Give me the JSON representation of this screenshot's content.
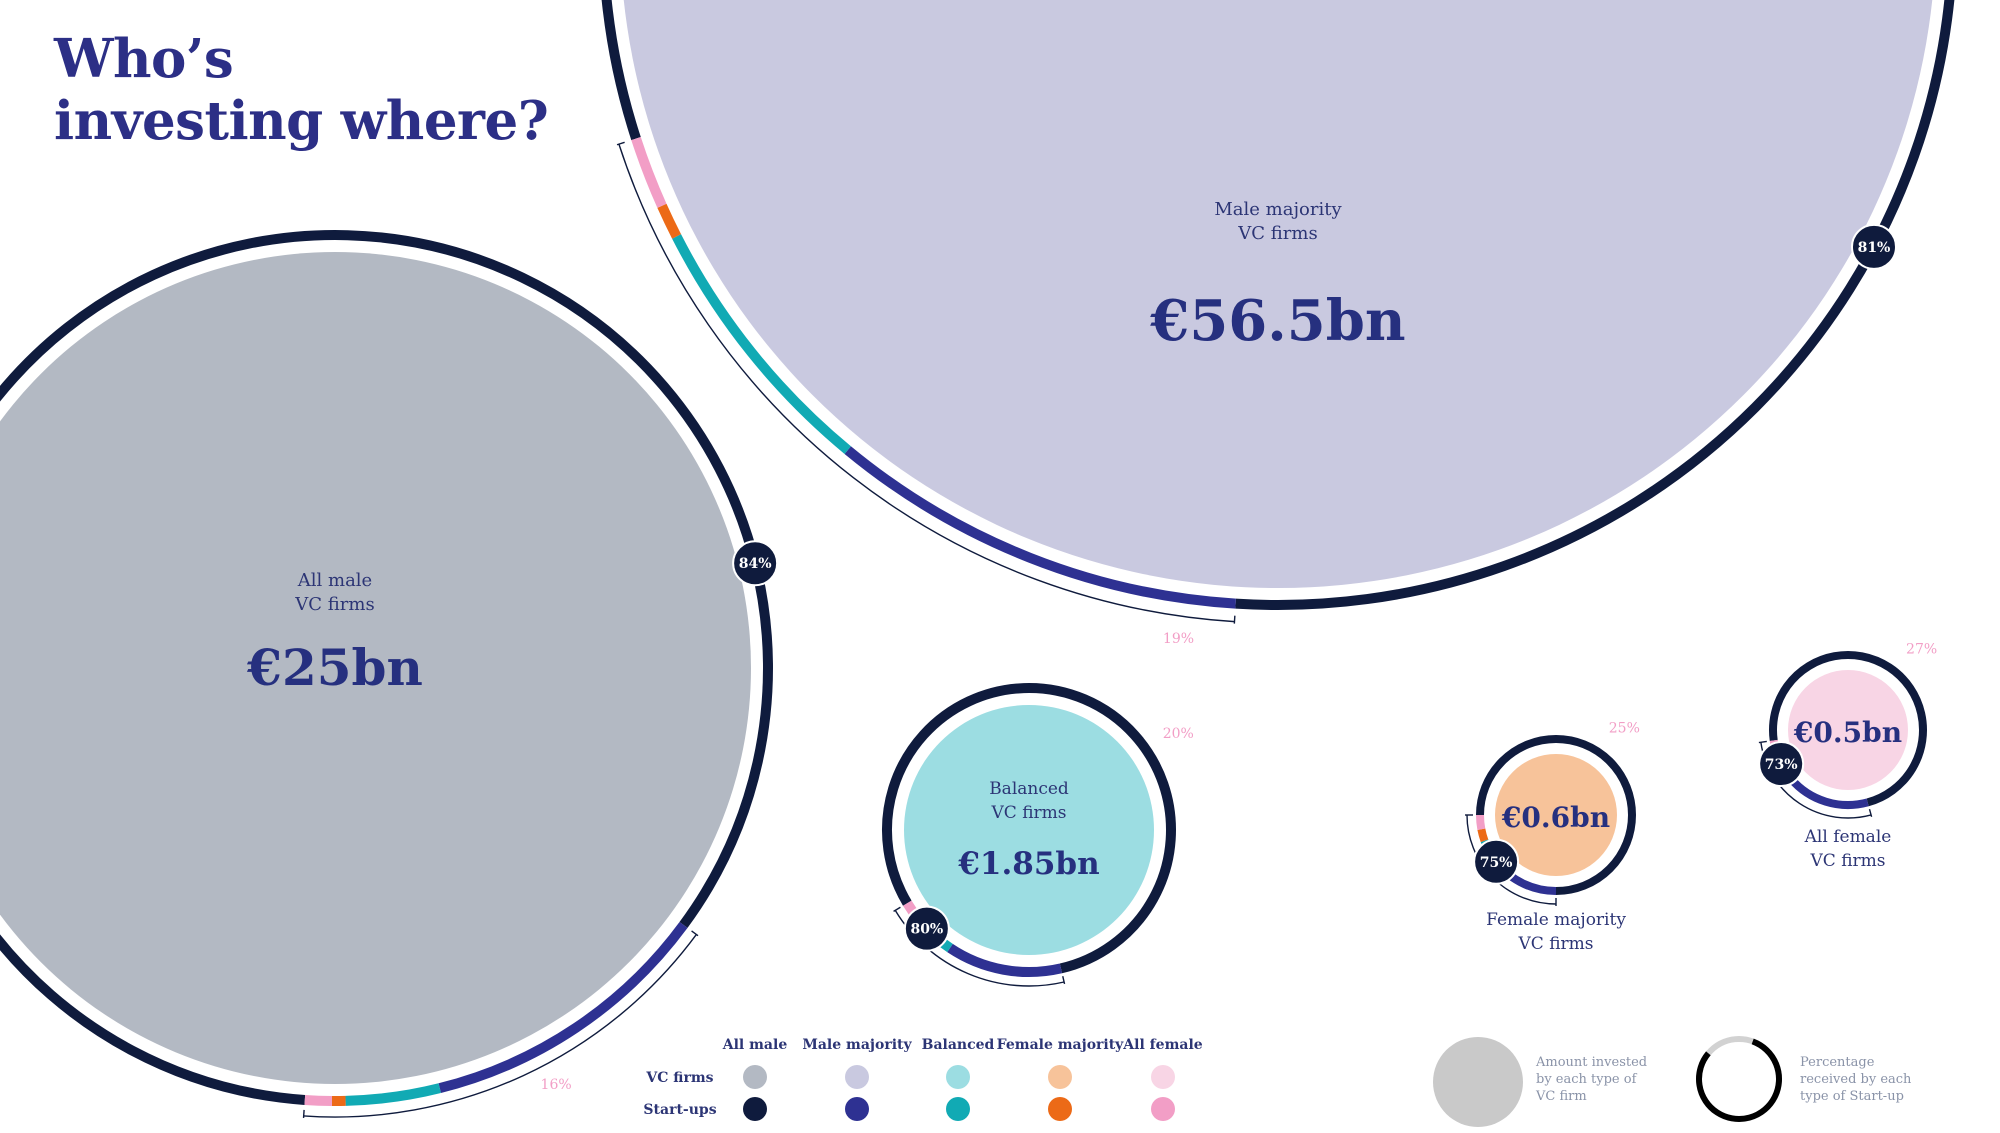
{
  "title": {
    "line1": "Who’s",
    "line2": "investing where?"
  },
  "colors": {
    "start_ups": {
      "all_male": "#0f1b3d",
      "male_majority": "#2e3192",
      "balanced": "#11aab4",
      "female_majority": "#ec6a17",
      "all_female": "#f29ec6"
    },
    "vc_firms": {
      "all_male": "#b3b9c3",
      "male_majority": "#c9c9e0",
      "balanced": "#9cdde2",
      "female_majority": "#f7c39a",
      "all_female": "#f8d5e5"
    },
    "female_share_label": "#f29ec6"
  },
  "chart_data": {
    "type": "bubble",
    "title": "Who’s investing where?",
    "unit": "€bn",
    "bubbles": [
      {
        "id": "male_majority",
        "label_line1": "Male majority",
        "label_line2": "VC firms",
        "amount_label": "€56.5bn",
        "amount_bn": 56.5,
        "male_pct_label": "81%",
        "female_pct_label": "19%",
        "startup_split": {
          "all_male": 81,
          "male_majority": 10,
          "balanced": 6.5,
          "female_majority": 0.8,
          "all_female": 1.7
        }
      },
      {
        "id": "all_male",
        "label_line1": "All male",
        "label_line2": "VC firms",
        "amount_label": "€25bn",
        "amount_bn": 25,
        "male_pct_label": "84%",
        "female_pct_label": "16%",
        "startup_split": {
          "all_male": 84,
          "male_majority": 11,
          "balanced": 3.5,
          "female_majority": 0.5,
          "all_female": 1
        }
      },
      {
        "id": "balanced",
        "label_line1": "Balanced",
        "label_line2": "VC firms",
        "amount_label": "€1.85bn",
        "amount_bn": 1.85,
        "male_pct_label": "80%",
        "female_pct_label": "20%",
        "startup_split": {
          "all_male": 80,
          "male_majority": 13,
          "balanced": 4,
          "female_majority": 0.7,
          "all_female": 2.3
        }
      },
      {
        "id": "female_majority",
        "label_line1": "Female majority",
        "label_line2": "VC firms",
        "amount_label": "€0.6bn",
        "amount_bn": 0.6,
        "male_pct_label": "75%",
        "female_pct_label": "25%",
        "startup_split": {
          "all_male": 75,
          "male_majority": 14,
          "balanced": 5.5,
          "female_majority": 2.5,
          "all_female": 3
        }
      },
      {
        "id": "all_female",
        "label_line1": "All female",
        "label_line2": "VC firms",
        "amount_label": "€0.5bn",
        "amount_bn": 0.5,
        "male_pct_label": "73%",
        "female_pct_label": "27%",
        "startup_split": {
          "all_male": 73,
          "male_majority": 18,
          "balanced": 7,
          "female_majority": 1.2,
          "all_female": 0.8
        }
      }
    ]
  },
  "legend": {
    "columns": [
      "All male",
      "Male majority",
      "Balanced",
      "Female majority",
      "All female"
    ],
    "rows": [
      "VC firms",
      "Start-ups"
    ],
    "amount_key": [
      "Amount invested",
      "by each type of",
      "VC firm"
    ],
    "percentage_key": [
      "Percentage",
      "received by each",
      "type of Start-up"
    ]
  }
}
